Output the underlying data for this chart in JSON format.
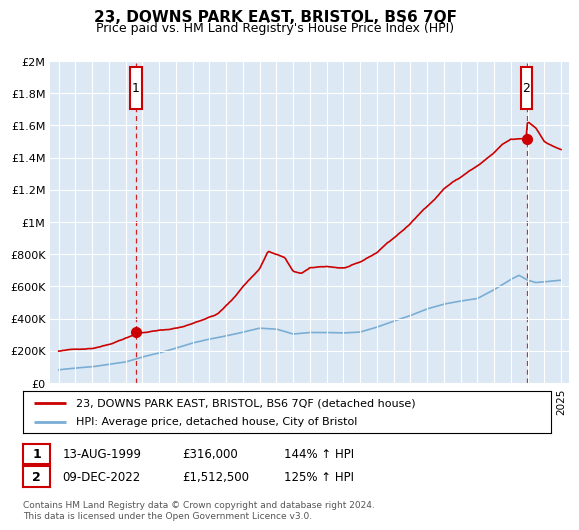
{
  "title": "23, DOWNS PARK EAST, BRISTOL, BS6 7QF",
  "subtitle": "Price paid vs. HM Land Registry's House Price Index (HPI)",
  "xlim": [
    1994.5,
    2025.5
  ],
  "ylim": [
    0,
    2000000
  ],
  "yticks": [
    0,
    200000,
    400000,
    600000,
    800000,
    1000000,
    1200000,
    1400000,
    1600000,
    1800000,
    2000000
  ],
  "ytick_labels": [
    "£0",
    "£200K",
    "£400K",
    "£600K",
    "£800K",
    "£1M",
    "£1.2M",
    "£1.4M",
    "£1.6M",
    "£1.8M",
    "£2M"
  ],
  "xticks": [
    1995,
    1996,
    1997,
    1998,
    1999,
    2000,
    2001,
    2002,
    2003,
    2004,
    2005,
    2006,
    2007,
    2008,
    2009,
    2010,
    2011,
    2012,
    2013,
    2014,
    2015,
    2016,
    2017,
    2018,
    2019,
    2020,
    2021,
    2022,
    2023,
    2024,
    2025
  ],
  "red_line_color": "#cc0000",
  "blue_line_color": "#7aadd4",
  "plot_bg_color": "#dce9f5",
  "background_color": "#ffffff",
  "grid_color": "#ffffff",
  "title_fontsize": 11,
  "subtitle_fontsize": 9,
  "purchase1_x": 1999.62,
  "purchase1_y": 316000,
  "purchase2_x": 2022.94,
  "purchase2_y": 1512500,
  "annotation_box_color": "#cc0000",
  "footer_text": "Contains HM Land Registry data © Crown copyright and database right 2024.\nThis data is licensed under the Open Government Licence v3.0.",
  "legend_entry1": "23, DOWNS PARK EAST, BRISTOL, BS6 7QF (detached house)",
  "legend_entry2": "HPI: Average price, detached house, City of Bristol",
  "table_row1": [
    "1",
    "13-AUG-1999",
    "£316,000",
    "144% ↑ HPI"
  ],
  "table_row2": [
    "2",
    "09-DEC-2022",
    "£1,512,500",
    "125% ↑ HPI"
  ]
}
